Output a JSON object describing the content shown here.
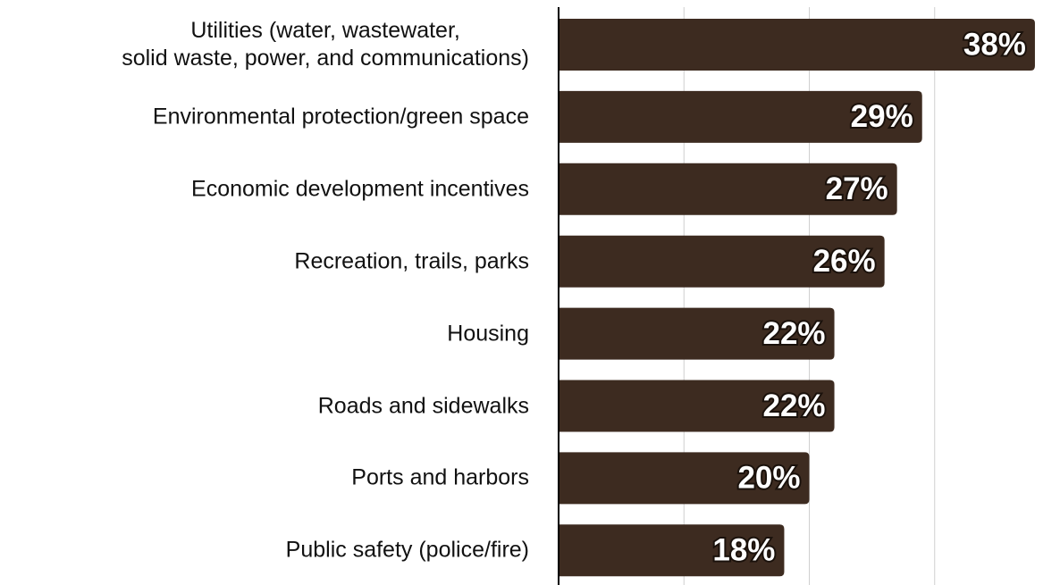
{
  "chart_data": {
    "type": "bar",
    "orientation": "horizontal",
    "categories": [
      "Utilities (water, wastewater,\nsolid waste, power, and communications)",
      "Environmental protection/green space",
      "Economic development incentives",
      "Recreation, trails, parks",
      "Housing",
      "Roads and sidewalks",
      "Ports and harbors",
      "Public safety (police/fire)"
    ],
    "values": [
      38,
      29,
      27,
      26,
      22,
      22,
      20,
      18
    ],
    "value_labels": [
      "38%",
      "29%",
      "27%",
      "26%",
      "22%",
      "22%",
      "20%",
      "18%"
    ],
    "color": "#3d2b20",
    "xlim": [
      0,
      40
    ],
    "xticks": [
      10,
      20,
      30
    ],
    "grid": true
  }
}
